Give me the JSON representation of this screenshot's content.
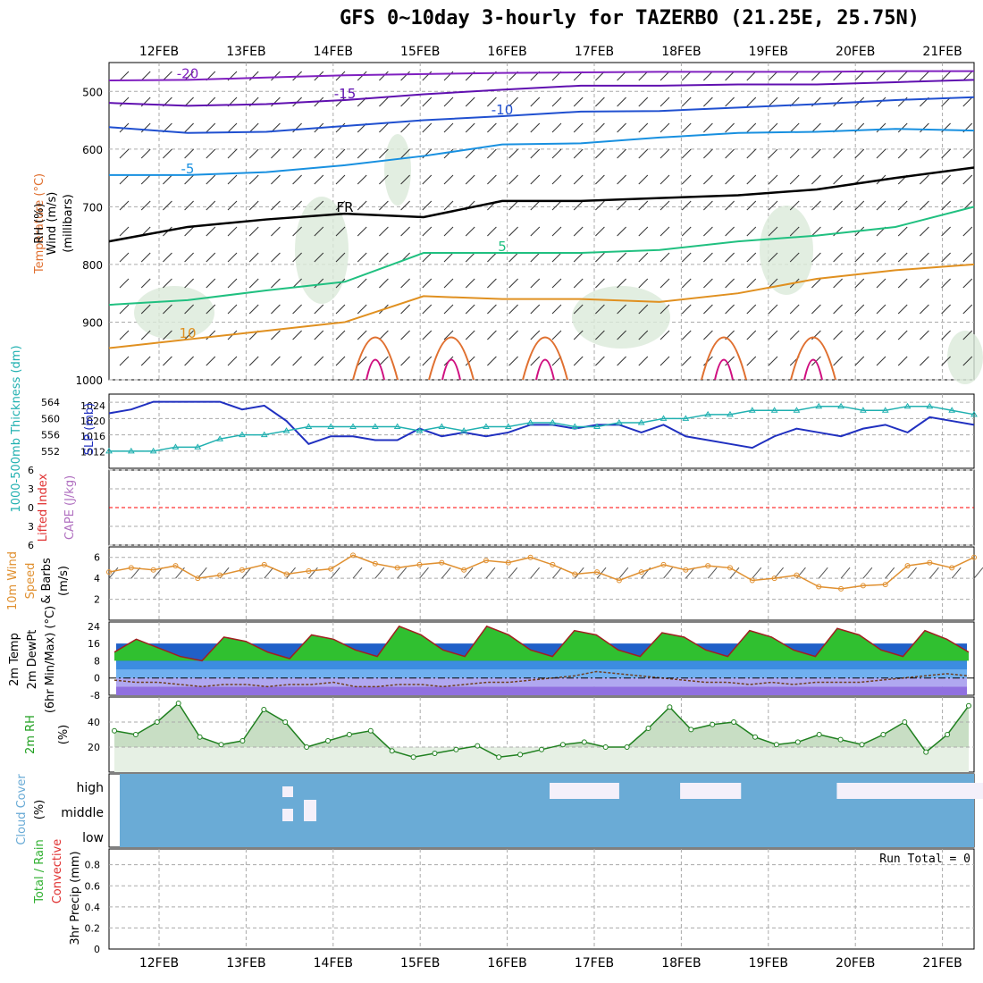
{
  "title": "GFS 0~10day 3-hourly for TAZERBO (21.25E, 25.75N)",
  "dates": [
    "12FEB",
    "13FEB",
    "14FEB",
    "15FEB",
    "16FEB",
    "17FEB",
    "18FEB",
    "19FEB",
    "20FEB",
    "21FEB"
  ],
  "colors": {
    "grid": "#aaaaaa",
    "temp_dash_red": "#ff0000",
    "slp": "#2030c0",
    "thickness": "#20b0b0",
    "wind": "#e09030",
    "temp_fill": "#30c030",
    "rh_fill": "#60c060",
    "cloud": "#6aabd6"
  },
  "chart_data": [
    {
      "type": "line",
      "panel": "upper-air",
      "y_labels_top": [
        "Wind (m/s)",
        "Temperature (°C)",
        "RH (%)"
      ],
      "ylabel": "(millibars)",
      "ylim": [
        1000,
        450
      ],
      "y_ticks": [
        500,
        600,
        700,
        800,
        900,
        1000
      ],
      "contours": [
        {
          "name": "-20",
          "label": "-20",
          "color": "#8020c0",
          "values": [
            481,
            480,
            476,
            472,
            470,
            468,
            467,
            466,
            466,
            466,
            465,
            465
          ]
        },
        {
          "name": "-15",
          "label": "-15",
          "color": "#6010b0",
          "values": [
            520,
            525,
            522,
            515,
            505,
            497,
            490,
            490,
            488,
            488,
            484,
            480
          ]
        },
        {
          "name": "-10",
          "label": "-10",
          "color": "#2050d0",
          "values": [
            562,
            572,
            570,
            560,
            550,
            543,
            535,
            534,
            528,
            522,
            515,
            510
          ]
        },
        {
          "name": "-5",
          "label": "-5",
          "color": "#1890e0",
          "values": [
            645,
            645,
            640,
            628,
            612,
            592,
            590,
            580,
            572,
            570,
            565,
            568
          ]
        },
        {
          "name": "FR",
          "label": "FR",
          "color": "#000000",
          "values": [
            760,
            735,
            722,
            712,
            718,
            690,
            690,
            685,
            680,
            670,
            650,
            632
          ]
        },
        {
          "name": "5",
          "label": "5",
          "color": "#20c080",
          "values": [
            870,
            862,
            845,
            830,
            780,
            780,
            780,
            775,
            760,
            750,
            735,
            700
          ]
        },
        {
          "name": "10",
          "label": "10",
          "color": "#e09020",
          "values": [
            945,
            930,
            915,
            900,
            855,
            860,
            860,
            865,
            850,
            825,
            810,
            800
          ]
        }
      ],
      "contour_x": [
        0,
        1,
        2,
        3,
        4,
        5,
        6,
        7,
        8,
        9,
        10,
        10
      ]
    },
    {
      "type": "line",
      "panel": "slp-thickness",
      "y_labels": [
        "1000-500mb Thickness (dm)",
        "SLP (mb)"
      ],
      "thickness_ticks": [
        552,
        556,
        560,
        564
      ],
      "slp_ticks": [
        1012,
        1016,
        1020,
        1024
      ],
      "series": [
        {
          "name": "SLP",
          "values": [
            1022,
            1023,
            1025,
            1025,
            1025,
            1025,
            1023,
            1024,
            1020,
            1014,
            1016,
            1016,
            1015,
            1015,
            1018,
            1016,
            1017,
            1016,
            1017,
            1019,
            1019,
            1018,
            1019,
            1019,
            1017,
            1019,
            1016,
            1015,
            1014,
            1013,
            1016,
            1018,
            1017,
            1016,
            1018,
            1019,
            1017,
            1021,
            1020,
            1019
          ]
        },
        {
          "name": "Thickness",
          "values": [
            552,
            552,
            552,
            553,
            553,
            555,
            556,
            556,
            557,
            558,
            558,
            558,
            558,
            558,
            557,
            558,
            557,
            558,
            558,
            559,
            559,
            558,
            558,
            559,
            559,
            560,
            560,
            561,
            561,
            562,
            562,
            562,
            563,
            563,
            562,
            562,
            563,
            563,
            562,
            561
          ]
        }
      ]
    },
    {
      "type": "line",
      "panel": "lifted-index-cape",
      "y_labels": [
        "Lifted Index",
        "CAPE (J/kg)"
      ],
      "y_ticks": [
        "6",
        "3",
        "0",
        "3",
        "6"
      ],
      "series": []
    },
    {
      "type": "line",
      "panel": "wind10m",
      "y_labels": [
        "10m Wind",
        "Speed",
        "& Barbs",
        "(m/s)"
      ],
      "y_ticks": [
        2,
        4,
        6
      ],
      "ylim": [
        0,
        7
      ],
      "series": [
        {
          "name": "Speed",
          "values": [
            4.6,
            5.0,
            4.8,
            5.2,
            4.0,
            4.3,
            4.8,
            5.3,
            4.4,
            4.7,
            4.9,
            6.2,
            5.4,
            5.0,
            5.3,
            5.5,
            4.8,
            5.7,
            5.5,
            6.0,
            5.3,
            4.4,
            4.6,
            3.8,
            4.6,
            5.3,
            4.8,
            5.2,
            5.0,
            3.8,
            4.0,
            4.3,
            3.2,
            3.0,
            3.3,
            3.4,
            5.2,
            5.5,
            5.0,
            6.0
          ]
        }
      ]
    },
    {
      "type": "area",
      "panel": "temperature",
      "y_labels": [
        "2m Temp",
        "2m DewPt",
        "(6hr Min/Max) (°C)"
      ],
      "y_ticks": [
        24,
        16,
        8,
        0,
        -8
      ],
      "ylim": [
        -8,
        26
      ],
      "series": [
        {
          "name": "Temp",
          "values": [
            12,
            18,
            14,
            10,
            8,
            19,
            17,
            12,
            9,
            20,
            18,
            13,
            10,
            24,
            20,
            13,
            10,
            24,
            20,
            13,
            10,
            22,
            20,
            13,
            10,
            21,
            19,
            13,
            10,
            22,
            19,
            13,
            10,
            23,
            20,
            13,
            10,
            22,
            18,
            12
          ]
        },
        {
          "name": "DewPt",
          "values": [
            -1,
            -2,
            -2,
            -3,
            -4,
            -3,
            -3,
            -4,
            -3,
            -3,
            -2,
            -4,
            -4,
            -3,
            -3,
            -4,
            -3,
            -2,
            -2,
            -1,
            0,
            1,
            3,
            2,
            1,
            0,
            -1,
            -2,
            -2,
            -3,
            -2,
            -3,
            -2,
            -2,
            -2,
            -1,
            0,
            1,
            2,
            1
          ]
        }
      ]
    },
    {
      "type": "area",
      "panel": "rh2m",
      "y_labels": [
        "2m RH",
        "(%)"
      ],
      "y_ticks": [
        20,
        40
      ],
      "ylim": [
        0,
        60
      ],
      "series": [
        {
          "name": "RH",
          "values": [
            33,
            30,
            40,
            55,
            28,
            22,
            25,
            50,
            40,
            20,
            25,
            30,
            33,
            17,
            12,
            15,
            18,
            21,
            12,
            14,
            18,
            22,
            24,
            20,
            20,
            35,
            52,
            34,
            38,
            40,
            28,
            22,
            24,
            30,
            26,
            22,
            30,
            40,
            16,
            30,
            53
          ]
        }
      ]
    },
    {
      "type": "heatmap",
      "panel": "cloud-cover",
      "y_labels": [
        "Cloud Cover",
        "(%)"
      ],
      "rows": [
        "high",
        "middle",
        "low"
      ],
      "clear_high_spans": [
        [
          5.0,
          5.8
        ],
        [
          6.5,
          7.2
        ],
        [
          8.3,
          10.0
        ]
      ]
    },
    {
      "type": "bar",
      "panel": "precip",
      "y_labels": [
        "Total / Rain",
        "Convective",
        "3hr Precip (mm)"
      ],
      "annotation": "Run Total = 0",
      "y_ticks": [
        0,
        0.2,
        0.4,
        0.6,
        0.8
      ],
      "ylim": [
        0,
        0.95
      ],
      "series": []
    }
  ]
}
